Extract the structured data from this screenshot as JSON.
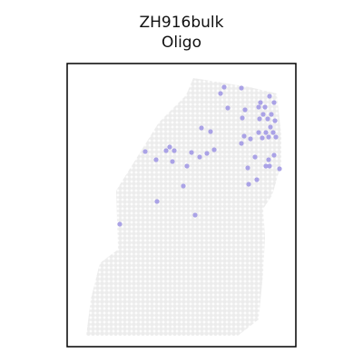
{
  "chart_data": {
    "type": "scatter",
    "title": "ZH916bulk",
    "subtitle": "Oligo",
    "xlabel": "",
    "ylabel": "",
    "grid": false,
    "legend": "none",
    "background_color": "#ececec",
    "highlight_color": "#aaa2e6",
    "frame_color": "#000000",
    "background_region_outline": [
      [
        95,
        370
      ],
      [
        100,
        330
      ],
      [
        110,
        290
      ],
      [
        130,
        275
      ],
      [
        128,
        210
      ],
      [
        150,
        175
      ],
      [
        175,
        135
      ],
      [
        205,
        105
      ],
      [
        213,
        86
      ],
      [
        275,
        96
      ],
      [
        305,
        103
      ],
      [
        310,
        150
      ],
      [
        310,
        180
      ],
      [
        300,
        215
      ],
      [
        290,
        230
      ],
      [
        292,
        262
      ],
      [
        290,
        300
      ],
      [
        285,
        352
      ],
      [
        262,
        370
      ]
    ],
    "highlighted_spots": [
      [
        247,
        96
      ],
      [
        243,
        103
      ],
      [
        266,
        97
      ],
      [
        297,
        106
      ],
      [
        287,
        113
      ],
      [
        302,
        113
      ],
      [
        285,
        118
      ],
      [
        292,
        118
      ],
      [
        251,
        119
      ],
      [
        270,
        121
      ],
      [
        222,
        141
      ],
      [
        232,
        145
      ],
      [
        290,
        126
      ],
      [
        299,
        126
      ],
      [
        286,
        131
      ],
      [
        295,
        131
      ],
      [
        303,
        133
      ],
      [
        267,
        130
      ],
      [
        298,
        140
      ],
      [
        285,
        146
      ],
      [
        293,
        146
      ],
      [
        301,
        146
      ],
      [
        296,
        151
      ],
      [
        304,
        151
      ],
      [
        289,
        152
      ],
      [
        269,
        150
      ],
      [
        276,
        153
      ],
      [
        266,
        158
      ],
      [
        187,
        162
      ],
      [
        183,
        166
      ],
      [
        192,
        166
      ],
      [
        160,
        167
      ],
      [
        211,
        168
      ],
      [
        228,
        169
      ],
      [
        236,
        165
      ],
      [
        220,
        173
      ],
      [
        172,
        176
      ],
      [
        190,
        178
      ],
      [
        296,
        176
      ],
      [
        206,
        183
      ],
      [
        281,
        173
      ],
      [
        293,
        183
      ],
      [
        273,
        185
      ],
      [
        308,
        186
      ],
      [
        297,
        183
      ],
      [
        302,
        171
      ],
      [
        283,
        198
      ],
      [
        202,
        205
      ],
      [
        173,
        222
      ],
      [
        274,
        203
      ],
      [
        215,
        237
      ],
      [
        132,
        247
      ]
    ]
  }
}
